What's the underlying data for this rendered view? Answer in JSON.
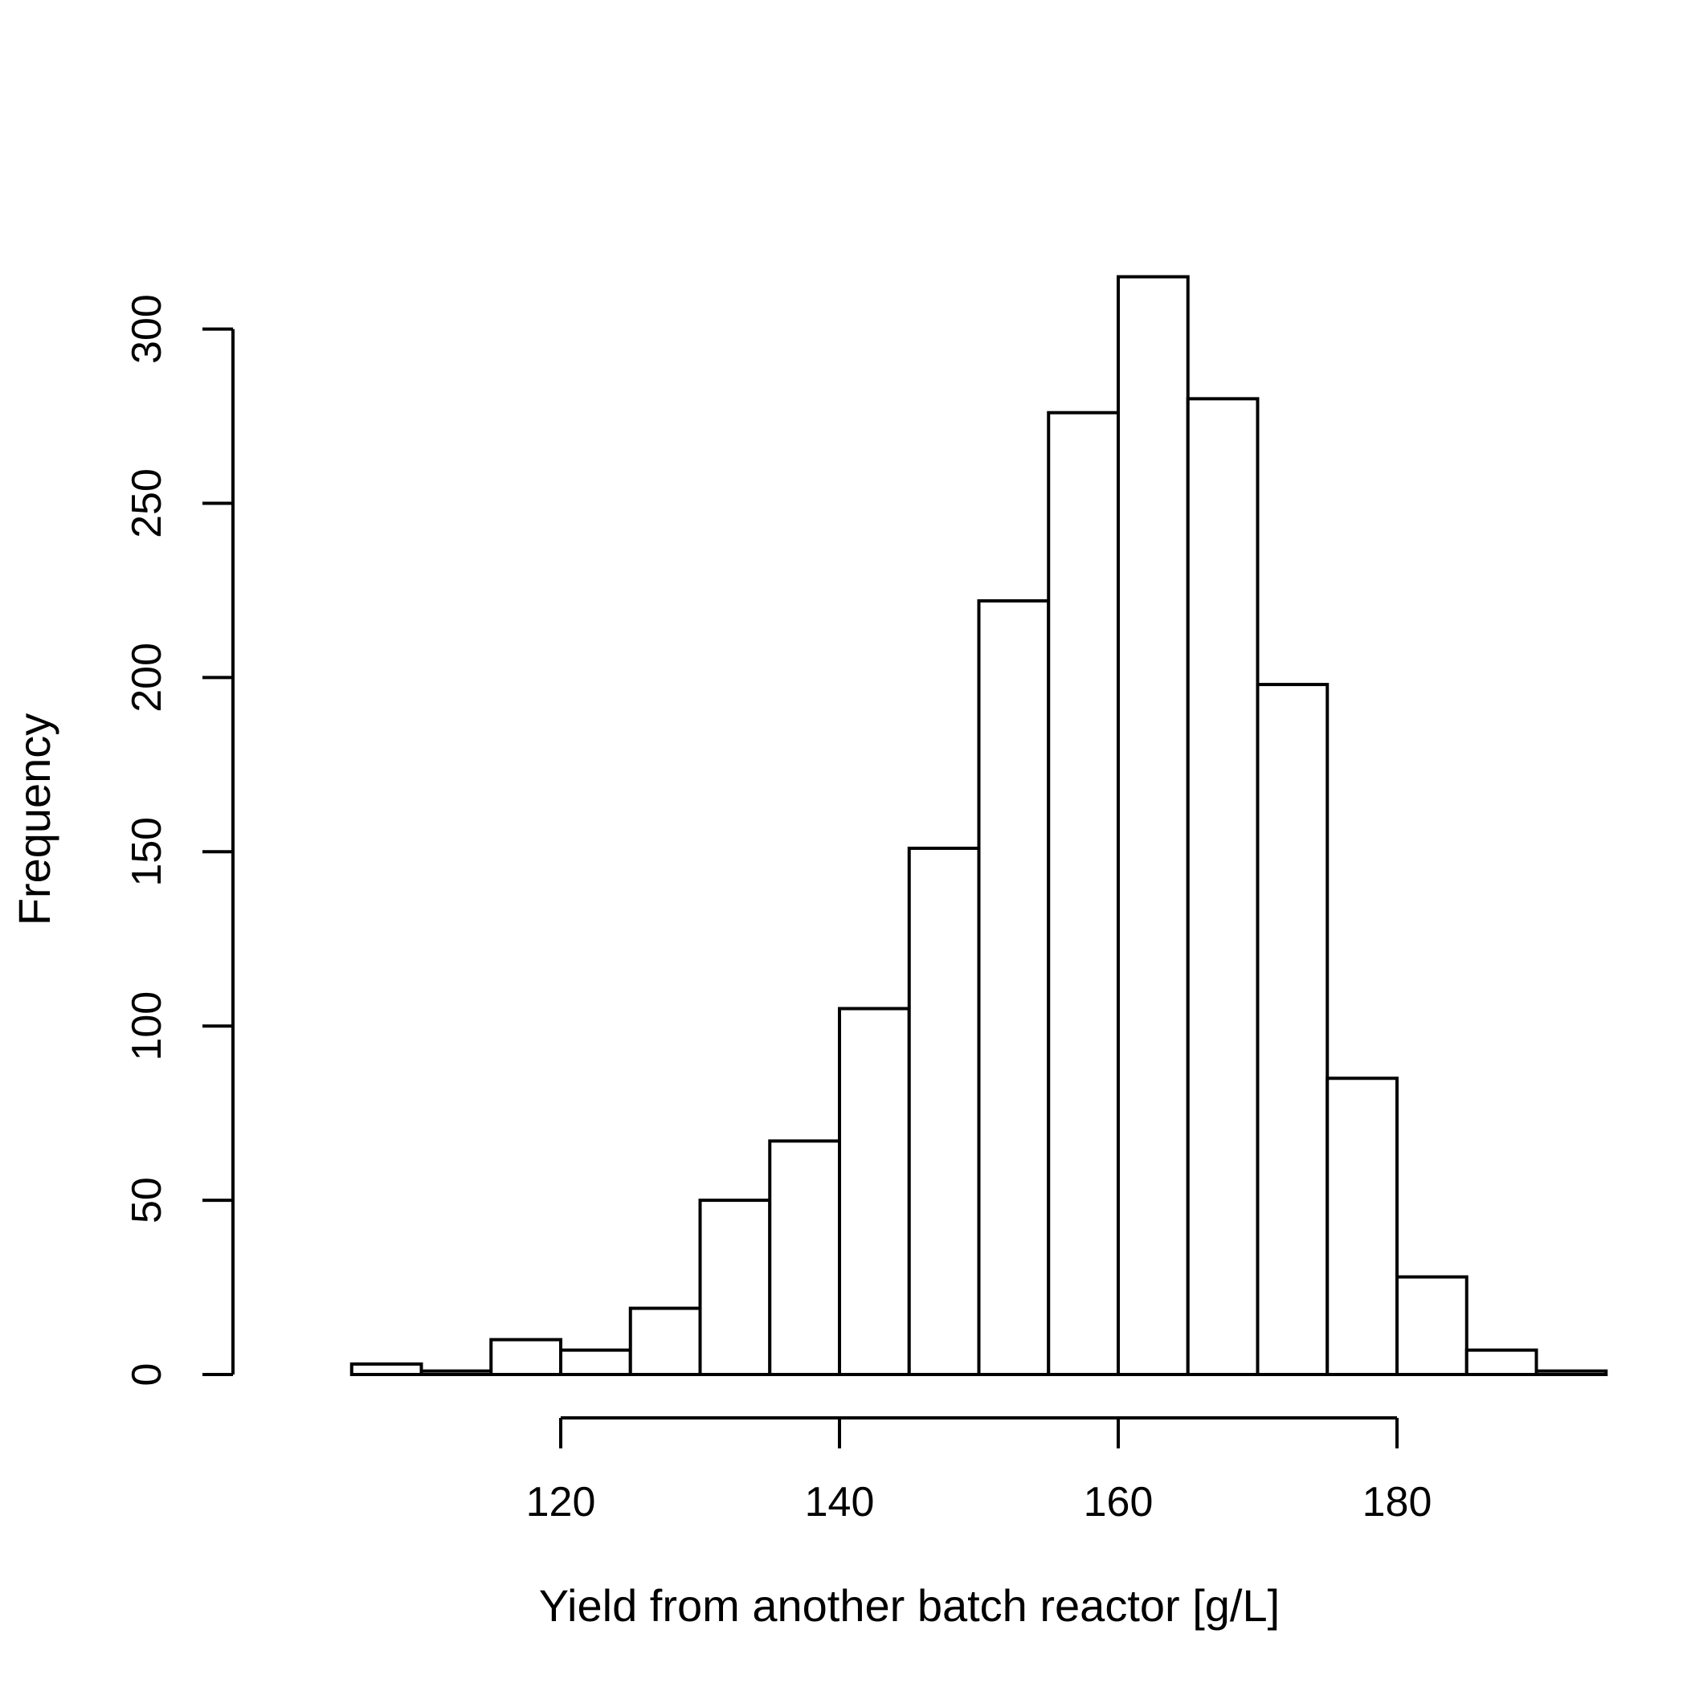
{
  "chart_data": {
    "type": "bar",
    "subtype": "histogram",
    "title": "",
    "xlabel": "Yield from another batch reactor [g/L]",
    "ylabel": "Frequency",
    "bin_width": 5,
    "bins": [
      {
        "start": 105,
        "end": 110,
        "count": 3
      },
      {
        "start": 110,
        "end": 115,
        "count": 1
      },
      {
        "start": 115,
        "end": 120,
        "count": 10
      },
      {
        "start": 120,
        "end": 125,
        "count": 7
      },
      {
        "start": 125,
        "end": 130,
        "count": 19
      },
      {
        "start": 130,
        "end": 135,
        "count": 50
      },
      {
        "start": 135,
        "end": 140,
        "count": 67
      },
      {
        "start": 140,
        "end": 145,
        "count": 105
      },
      {
        "start": 145,
        "end": 150,
        "count": 151
      },
      {
        "start": 150,
        "end": 155,
        "count": 222
      },
      {
        "start": 155,
        "end": 160,
        "count": 276
      },
      {
        "start": 160,
        "end": 165,
        "count": 315
      },
      {
        "start": 165,
        "end": 170,
        "count": 280
      },
      {
        "start": 170,
        "end": 175,
        "count": 198
      },
      {
        "start": 175,
        "end": 180,
        "count": 85
      },
      {
        "start": 180,
        "end": 185,
        "count": 28
      },
      {
        "start": 185,
        "end": 190,
        "count": 7
      },
      {
        "start": 190,
        "end": 195,
        "count": 1
      }
    ],
    "x_ticks": [
      120,
      140,
      160,
      180
    ],
    "y_ticks": [
      0,
      50,
      100,
      150,
      200,
      250,
      300
    ],
    "xlim": [
      105,
      195
    ],
    "ylim": [
      0,
      315
    ],
    "grid": false,
    "legend": "none"
  }
}
